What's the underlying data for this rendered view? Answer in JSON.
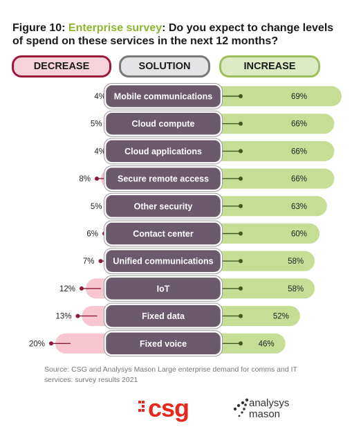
{
  "title": {
    "prefix": "Figure 10: ",
    "highlight": "Enterprise survey",
    "rest": ": Do you expect to change levels of spend on these services in the next 12 months?"
  },
  "headers": {
    "decrease": "DECREASE",
    "solution": "SOLUTION",
    "increase": "INCREASE"
  },
  "colors": {
    "decrease_fill": "#f7c6d1",
    "decrease_dot": "#8c1a38",
    "solution_pill": "#6b5a6b",
    "increase_fill": "#c5dd94",
    "increase_dot": "#3f5a20",
    "title_highlight": "#8db52f"
  },
  "chart_data": {
    "type": "bar",
    "categories": [
      "Mobile communications",
      "Cloud compute",
      "Cloud applications",
      "Secure remote access",
      "Other security",
      "Contact center",
      "Unified communications",
      "IoT",
      "Fixed data",
      "Fixed voice"
    ],
    "series": [
      {
        "name": "DECREASE",
        "values": [
          4,
          5,
          4,
          8,
          5,
          6,
          7,
          12,
          13,
          20
        ]
      },
      {
        "name": "INCREASE",
        "values": [
          69,
          66,
          66,
          66,
          63,
          60,
          58,
          58,
          52,
          46
        ]
      }
    ],
    "value_labels": {
      "decrease": [
        "4%",
        "5%",
        "4%",
        "8%",
        "5%",
        "6%",
        "7%",
        "12%",
        "13%",
        "20%"
      ],
      "increase": [
        "69%",
        "66%",
        "66%",
        "66%",
        "63%",
        "60%",
        "58%",
        "58%",
        "52%",
        "46%"
      ]
    }
  },
  "source": "Source: CSG and Analysys Mason Large enterprise demand for comms and IT services: survey results 2021",
  "logos": {
    "csg": "csg",
    "analysys_mason_line1": "analysys",
    "analysys_mason_line2": "mason"
  }
}
